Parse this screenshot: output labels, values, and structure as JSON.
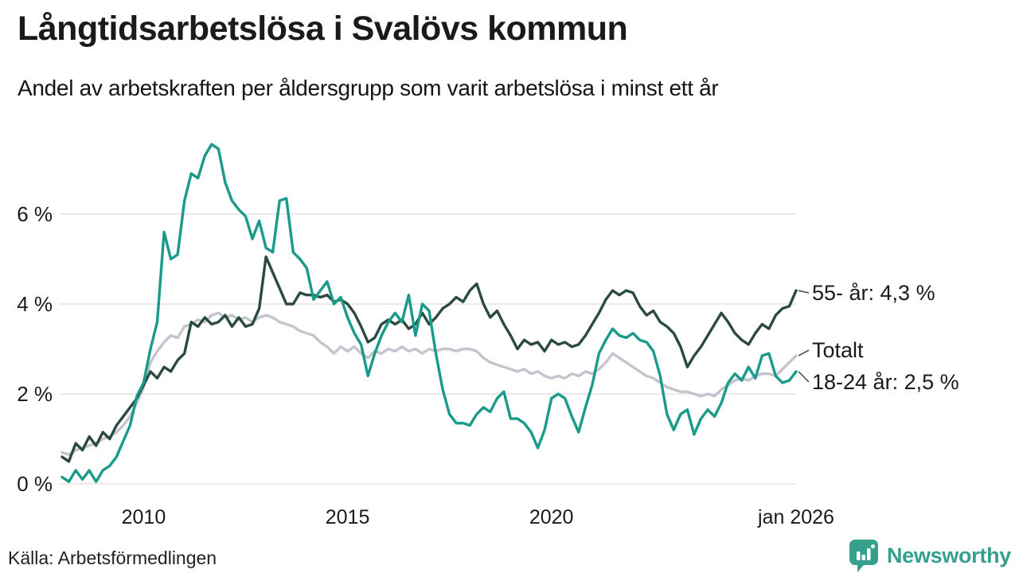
{
  "header": {
    "title": "Långtidsarbetslösa i Svalövs kommun",
    "subtitle": "Andel av arbetskraften per åldersgrupp som varit arbetslösa i minst ett år"
  },
  "footer": {
    "source": "Källa: Arbetsförmedlingen",
    "brand": "Newsworthy",
    "brand_icon": "bar-chart-speech-bubble-icon"
  },
  "colors": {
    "series_18_24": "#1a9a89",
    "series_55": "#2b4b41",
    "series_total": "#c5c4ce",
    "grid": "#e4e4e4",
    "text": "#1a1a1a",
    "leader": "#4d4d4d",
    "brand": "#35a08e"
  },
  "chart_data": {
    "type": "line",
    "title": "Långtidsarbetslösa i Svalövs kommun",
    "subtitle": "Andel av arbetskraften per åldersgrupp som varit arbetslösa i minst ett år",
    "x_unit": "year (monthly data, sampled every 2 months)",
    "x_start_year": 2008.0,
    "x_step_years": 0.16667,
    "x_end_year": 2026.0,
    "ylim": [
      0,
      7.8
    ],
    "grid": "horizontal",
    "y_ticks": [
      {
        "label": "0 %",
        "value": 0
      },
      {
        "label": "2 %",
        "value": 2
      },
      {
        "label": "4 %",
        "value": 4
      },
      {
        "label": "6 %",
        "value": 6
      }
    ],
    "x_ticks": [
      {
        "label": "2010",
        "year": 2010
      },
      {
        "label": "2015",
        "year": 2015
      },
      {
        "label": "2020",
        "year": 2020
      },
      {
        "label": "jan 2026",
        "year": 2026
      }
    ],
    "series": [
      {
        "name": "Totalt",
        "end_label": "Totalt",
        "color_key": "series_total",
        "label_y": 440,
        "values": [
          0.7,
          0.65,
          0.75,
          0.8,
          0.85,
          0.9,
          1.0,
          1.05,
          1.15,
          1.3,
          1.5,
          1.8,
          2.15,
          2.7,
          2.95,
          3.15,
          3.3,
          3.25,
          3.5,
          3.55,
          3.65,
          3.6,
          3.75,
          3.8,
          3.7,
          3.75,
          3.65,
          3.7,
          3.6,
          3.7,
          3.75,
          3.7,
          3.6,
          3.55,
          3.5,
          3.4,
          3.35,
          3.3,
          3.15,
          3.05,
          2.9,
          3.05,
          2.95,
          3.05,
          2.9,
          2.8,
          2.95,
          2.9,
          3.0,
          2.95,
          3.05,
          2.95,
          3.0,
          2.9,
          3.0,
          2.95,
          3.0,
          3.0,
          2.95,
          3.0,
          3.0,
          2.95,
          2.8,
          2.7,
          2.65,
          2.6,
          2.55,
          2.5,
          2.55,
          2.45,
          2.5,
          2.4,
          2.35,
          2.4,
          2.35,
          2.45,
          2.4,
          2.5,
          2.45,
          2.55,
          2.7,
          2.9,
          2.8,
          2.7,
          2.6,
          2.5,
          2.4,
          2.35,
          2.25,
          2.15,
          2.1,
          2.05,
          2.05,
          2.0,
          1.95,
          2.0,
          1.95,
          2.1,
          2.2,
          2.3,
          2.35,
          2.3,
          2.4,
          2.45,
          2.45,
          2.4,
          2.55,
          2.7,
          2.85
        ]
      },
      {
        "name": "55- år",
        "end_label": "55- år: 4,3 %",
        "end_value_text": "4,3 %",
        "color_key": "series_55",
        "label_y": 368,
        "values": [
          0.6,
          0.5,
          0.9,
          0.75,
          1.05,
          0.85,
          1.15,
          1.0,
          1.3,
          1.5,
          1.7,
          1.9,
          2.2,
          2.5,
          2.35,
          2.6,
          2.5,
          2.75,
          2.9,
          3.6,
          3.5,
          3.7,
          3.55,
          3.6,
          3.75,
          3.5,
          3.7,
          3.5,
          3.55,
          3.9,
          5.05,
          4.7,
          4.35,
          4.0,
          4.0,
          4.25,
          4.2,
          4.2,
          4.15,
          4.2,
          4.05,
          4.1,
          4.0,
          3.8,
          3.5,
          3.15,
          3.25,
          3.55,
          3.65,
          3.55,
          3.65,
          3.45,
          3.55,
          3.8,
          3.55,
          3.7,
          3.9,
          4.0,
          4.15,
          4.05,
          4.3,
          4.45,
          4.0,
          3.7,
          3.85,
          3.55,
          3.3,
          3.0,
          3.2,
          3.1,
          3.15,
          2.95,
          3.2,
          3.1,
          3.15,
          3.05,
          3.1,
          3.3,
          3.55,
          3.8,
          4.1,
          4.3,
          4.2,
          4.3,
          4.25,
          3.95,
          3.75,
          3.85,
          3.6,
          3.5,
          3.35,
          3.05,
          2.6,
          2.85,
          3.05,
          3.3,
          3.55,
          3.8,
          3.6,
          3.35,
          3.2,
          3.1,
          3.35,
          3.55,
          3.45,
          3.75,
          3.9,
          3.95,
          4.3
        ]
      },
      {
        "name": "18-24 år",
        "end_label": "18-24 år: 2,5 %",
        "end_value_text": "2,5 %",
        "color_key": "series_18_24",
        "label_y": 480,
        "values": [
          0.15,
          0.05,
          0.3,
          0.1,
          0.3,
          0.05,
          0.3,
          0.4,
          0.6,
          0.95,
          1.3,
          1.95,
          2.25,
          3.0,
          3.6,
          5.6,
          5.0,
          5.1,
          6.3,
          6.9,
          6.8,
          7.3,
          7.55,
          7.45,
          6.7,
          6.3,
          6.1,
          5.95,
          5.45,
          5.85,
          5.25,
          5.15,
          6.3,
          6.35,
          5.15,
          5.0,
          4.8,
          4.1,
          4.3,
          4.5,
          4.0,
          4.15,
          3.7,
          3.35,
          3.1,
          2.4,
          2.9,
          3.3,
          3.6,
          3.8,
          3.6,
          4.2,
          3.3,
          4.0,
          3.85,
          2.9,
          2.1,
          1.55,
          1.35,
          1.35,
          1.3,
          1.55,
          1.7,
          1.6,
          1.9,
          2.05,
          1.45,
          1.45,
          1.35,
          1.15,
          0.8,
          1.2,
          1.9,
          2.0,
          1.9,
          1.5,
          1.15,
          1.7,
          2.2,
          2.9,
          3.2,
          3.45,
          3.3,
          3.25,
          3.35,
          3.2,
          3.15,
          2.95,
          2.4,
          1.55,
          1.2,
          1.55,
          1.65,
          1.1,
          1.45,
          1.65,
          1.5,
          1.8,
          2.25,
          2.45,
          2.3,
          2.6,
          2.35,
          2.85,
          2.9,
          2.4,
          2.25,
          2.3,
          2.5
        ]
      }
    ]
  }
}
